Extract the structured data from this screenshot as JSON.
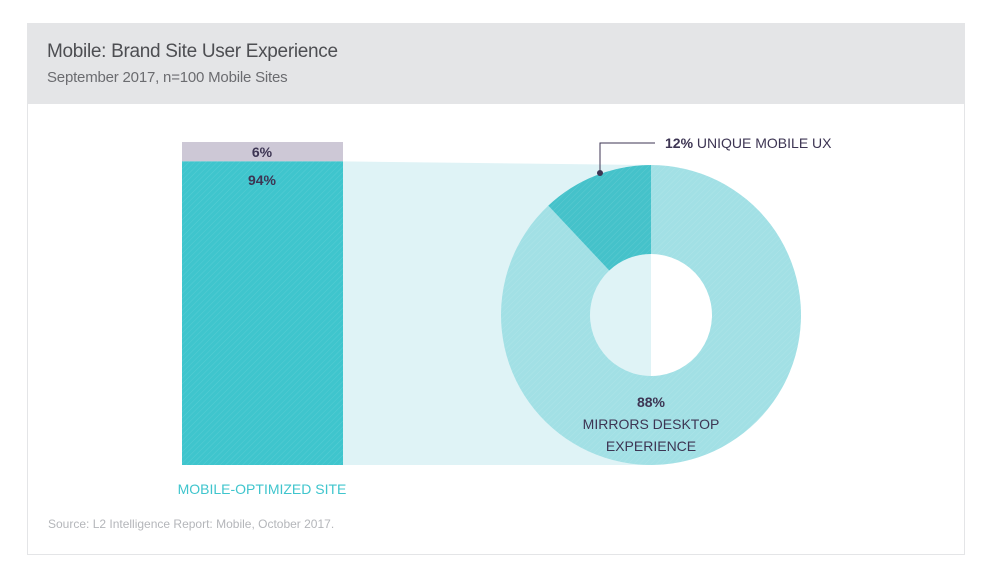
{
  "header": {
    "title": "Mobile: Brand Site User Experience",
    "subtitle": "September 2017, n=100 Mobile Sites"
  },
  "source": "Source: L2 Intelligence Report: Mobile, October 2017.",
  "colors": {
    "bar_main": "#3fc5cd",
    "bar_rest": "#cdc8d6",
    "connector": "#dff3f6",
    "donut_main": "#a2e0e5",
    "donut_slice": "#45c2ca",
    "label_dark": "#3d3553",
    "label_teal": "#3fc5cd"
  },
  "chart_data": [
    {
      "type": "bar",
      "stacked": true,
      "categories": [
        "MOBILE-OPTIMIZED SITE"
      ],
      "series": [
        {
          "value": 94,
          "label": "94%"
        },
        {
          "value": 6,
          "label": "6%"
        }
      ],
      "xlabel": "MOBILE-OPTIMIZED SITE"
    },
    {
      "type": "pie",
      "donut": true,
      "slices": [
        {
          "value": 12,
          "pct_label": "12%",
          "name": "UNIQUE MOBILE UX"
        },
        {
          "value": 88,
          "pct_label": "88%",
          "name_line1": "MIRRORS DESKTOP",
          "name_line2": "EXPERIENCE"
        }
      ]
    }
  ]
}
